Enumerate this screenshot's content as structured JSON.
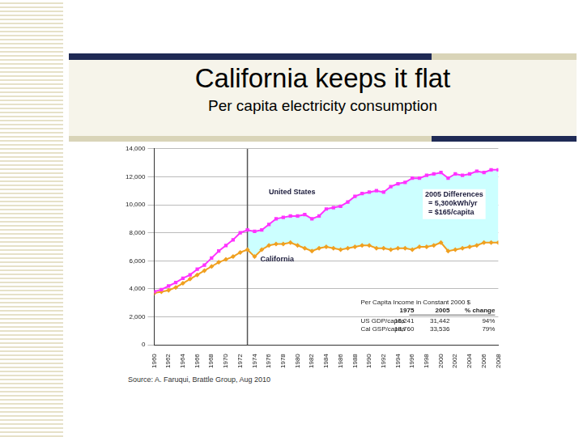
{
  "chart_data": {
    "type": "line",
    "title": "California keeps it flat",
    "subtitle": "Per capita electricity consumption",
    "source": "Source: A. Faruqui, Brattle Group, Aug 2010",
    "x": [
      1960,
      1961,
      1962,
      1963,
      1964,
      1965,
      1966,
      1967,
      1968,
      1969,
      1970,
      1971,
      1972,
      1973,
      1974,
      1975,
      1976,
      1977,
      1978,
      1979,
      1980,
      1981,
      1982,
      1983,
      1984,
      1985,
      1986,
      1987,
      1988,
      1989,
      1990,
      1991,
      1992,
      1993,
      1994,
      1995,
      1996,
      1997,
      1998,
      1999,
      2000,
      2001,
      2002,
      2003,
      2004,
      2005,
      2006,
      2007,
      2008
    ],
    "series": [
      {
        "name": "United States",
        "color": "#ff33ff",
        "marker": "square",
        "label_position": {
          "x": 1976,
          "y": 10900
        },
        "values": [
          3800,
          3950,
          4200,
          4450,
          4750,
          5000,
          5400,
          5700,
          6200,
          6700,
          7100,
          7500,
          8000,
          8200,
          8100,
          8200,
          8600,
          9000,
          9100,
          9200,
          9200,
          9300,
          9000,
          9200,
          9700,
          9800,
          9900,
          10200,
          10600,
          10800,
          10900,
          11000,
          10900,
          11300,
          11500,
          11600,
          11900,
          11900,
          12100,
          12200,
          12300,
          11900,
          12200,
          12100,
          12200,
          12400,
          12300,
          12500,
          12500
        ]
      },
      {
        "name": "California",
        "color": "#f0a020",
        "marker": "diamond",
        "label_position": {
          "x": 1974.8,
          "y": 6100
        },
        "values": [
          3700,
          3800,
          3900,
          4100,
          4400,
          4700,
          5000,
          5300,
          5600,
          5900,
          6100,
          6300,
          6600,
          6800,
          6300,
          6800,
          7100,
          7200,
          7200,
          7300,
          7100,
          6900,
          6700,
          6900,
          7000,
          6900,
          6800,
          6900,
          7000,
          7100,
          7100,
          6900,
          6900,
          6800,
          6900,
          6900,
          6800,
          7000,
          7000,
          7100,
          7300,
          6700,
          6800,
          6900,
          7000,
          7100,
          7300,
          7300,
          7300
        ]
      }
    ],
    "xlim": [
      1960,
      2008
    ],
    "xticks": [
      1960,
      1962,
      1964,
      1966,
      1968,
      1970,
      1972,
      1974,
      1976,
      1978,
      1980,
      1982,
      1984,
      1986,
      1988,
      1990,
      1992,
      1994,
      1996,
      1998,
      2000,
      2002,
      2004,
      2006,
      2008
    ],
    "ylim": [
      0,
      14000
    ],
    "yticks": [
      0,
      {
        "value": 2000,
        "label": "2,000"
      },
      {
        "value": 4000,
        "label": "4,000"
      },
      {
        "value": 6000,
        "label": "6,000"
      },
      {
        "value": 8000,
        "label": "8,000"
      },
      {
        "value": 10000,
        "label": "10,000"
      },
      {
        "value": 12000,
        "label": "12,000"
      },
      {
        "value": 14000,
        "label": "14,000"
      }
    ],
    "grid": true,
    "reference_line": {
      "x": 1973
    },
    "annotations": [
      {
        "lines": [
          "2005 Differences",
          "= 5,300kWh/yr",
          "= $165/capita"
        ],
        "x": 1997.8,
        "y": 11000
      }
    ],
    "table": {
      "title": "Per Capita Income in Constant 2000 $",
      "columns": [
        "",
        "1975",
        "2005",
        "% change"
      ],
      "rows": [
        [
          "US GDP/capita",
          "16,241",
          "31,442",
          "94%"
        ],
        [
          "Cal GSP/capita",
          "18,760",
          "33,536",
          "79%"
        ]
      ]
    }
  }
}
